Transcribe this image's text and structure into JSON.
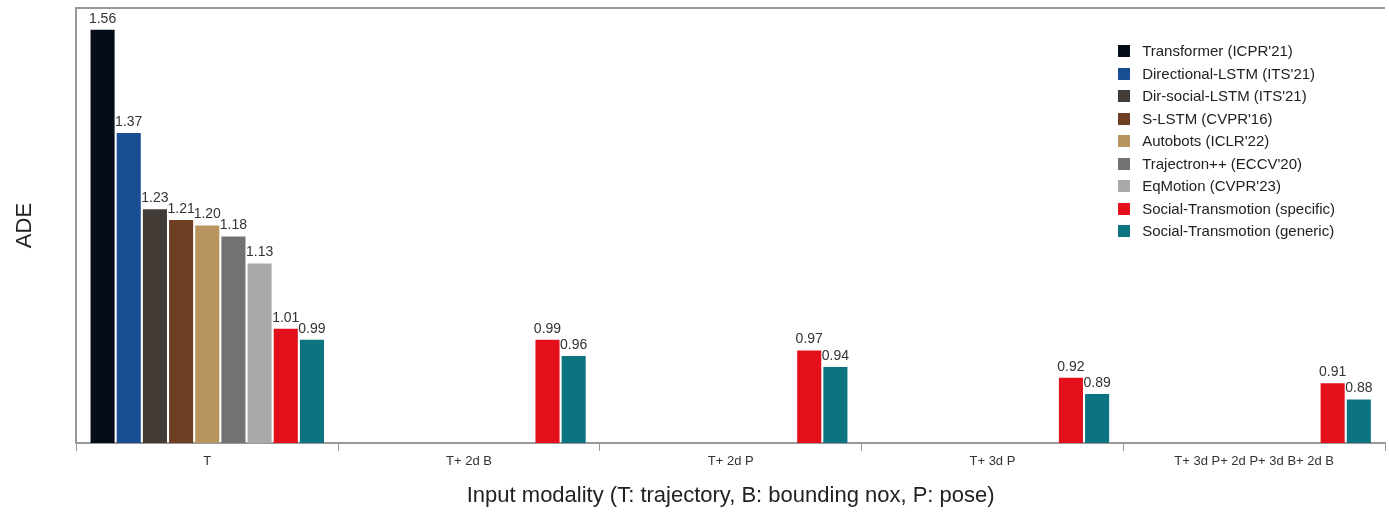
{
  "chart_data": {
    "type": "bar",
    "xlabel": "Input modality (T: trajectory, B: bounding nox, P: pose)",
    "ylabel": "ADE",
    "categories": [
      "T",
      "T+ 2d B",
      "T+ 2d P",
      "T+ 3d P",
      "T+ 3d P+ 2d P+ 3d B+ 2d B"
    ],
    "series": [
      {
        "name": "Transformer (ICPR'21)",
        "color": "#050d1a",
        "values": [
          1.56,
          null,
          null,
          null,
          null
        ],
        "value_labels": [
          "1.56",
          null,
          null,
          null,
          null
        ]
      },
      {
        "name": "Directional-LSTM (ITS'21)",
        "color": "#1a4e92",
        "values": [
          1.37,
          null,
          null,
          null,
          null
        ],
        "value_labels": [
          "1.37",
          null,
          null,
          null,
          null
        ]
      },
      {
        "name": "Dir-social-LSTM (ITS'21)",
        "color": "#433b36",
        "values": [
          1.23,
          null,
          null,
          null,
          null
        ],
        "value_labels": [
          "1.23",
          null,
          null,
          null,
          null
        ]
      },
      {
        "name": "S-LSTM (CVPR'16)",
        "color": "#6e3f22",
        "values": [
          1.21,
          null,
          null,
          null,
          null
        ],
        "value_labels": [
          "1.21",
          null,
          null,
          null,
          null
        ]
      },
      {
        "name": "Autobots (ICLR'22)",
        "color": "#b8955f",
        "values": [
          1.2,
          null,
          null,
          null,
          null
        ],
        "value_labels": [
          "1.20",
          null,
          null,
          null,
          null
        ]
      },
      {
        "name": "Trajectron++ (ECCV'20)",
        "color": "#717371",
        "values": [
          1.18,
          null,
          null,
          null,
          null
        ],
        "value_labels": [
          "1.18",
          null,
          null,
          null,
          null
        ]
      },
      {
        "name": "EqMotion (CVPR'23)",
        "color": "#a9a9a9",
        "values": [
          1.13,
          null,
          null,
          null,
          null
        ],
        "value_labels": [
          "1.13",
          null,
          null,
          null,
          null
        ]
      },
      {
        "name": "Social-Transmotion (specific)",
        "color": "#e3101c",
        "values": [
          1.01,
          0.99,
          0.97,
          0.92,
          0.91
        ],
        "value_labels": [
          "1.01",
          "0.99",
          "0.97",
          "0.92",
          "0.91"
        ]
      },
      {
        "name": "Social-Transmotion (generic)",
        "color": "#0b7480",
        "values": [
          0.99,
          0.96,
          0.94,
          0.89,
          0.88
        ],
        "value_labels": [
          "0.99",
          "0.96",
          "0.94",
          "0.89",
          "0.88"
        ]
      }
    ],
    "ylim": [
      0.8,
      1.6
    ],
    "tick_labels": "x",
    "legend": "top right"
  }
}
